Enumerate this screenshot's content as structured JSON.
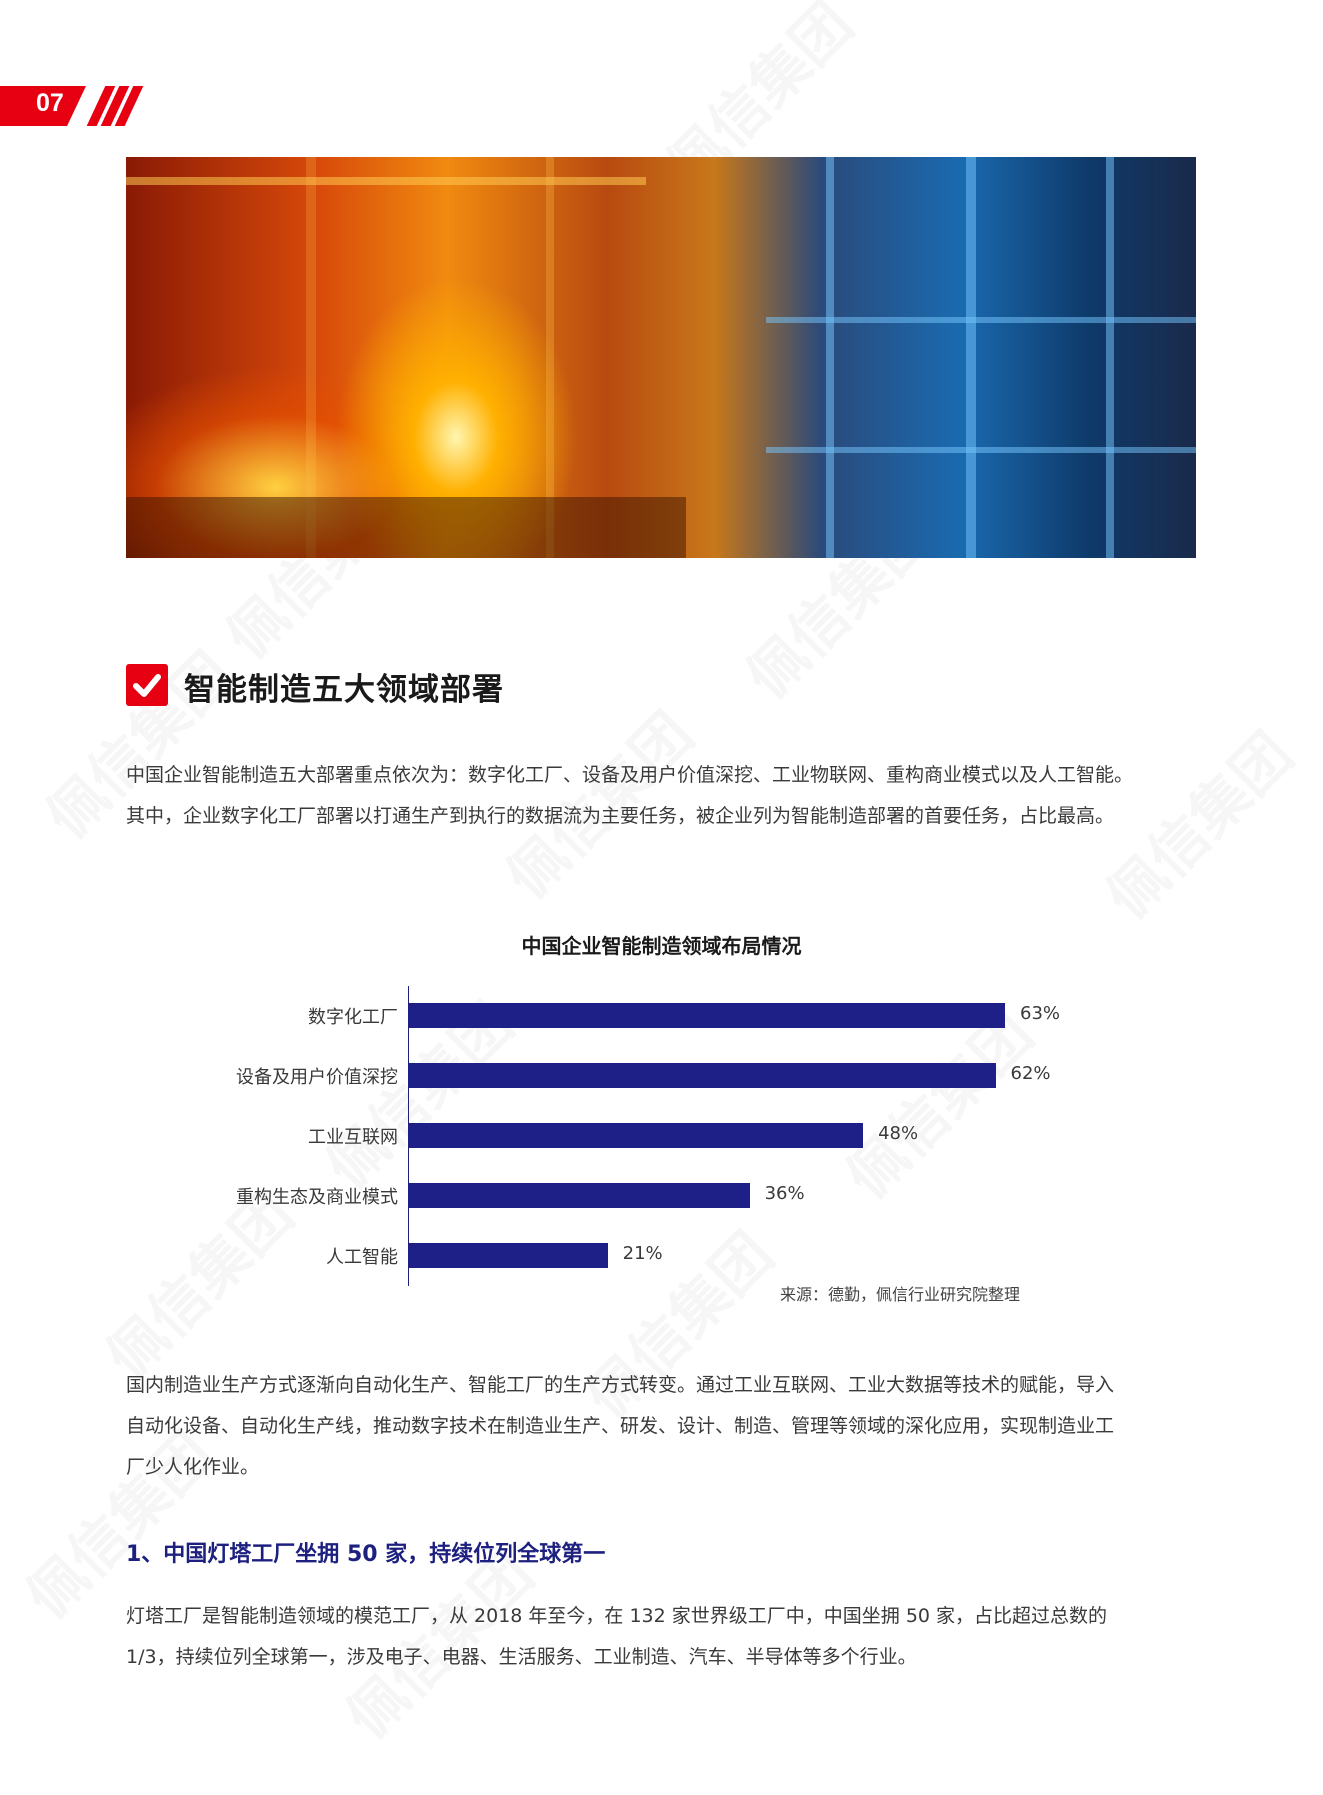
{
  "page": {
    "number": "07",
    "watermark": "佩信集团",
    "accent": "#e60012",
    "bar_color": "#1e2087"
  },
  "hero_image": {
    "alt": "steel-mill-industrial-photo"
  },
  "section": {
    "icon": "checkmark-icon",
    "title": "智能制造五大领域部署",
    "intro_lines": [
      "中国企业智能制造五大部署重点依次为：数字化工厂、设备及用户价值深挖、工业物联网、重构商业模式以及人工智能。",
      "其中，企业数字化工厂部署以打通生产到执行的数据流为主要任务，被企业列为智能制造部署的首要任务，占比最高。"
    ],
    "para2_lines": [
      "国内制造业生产方式逐渐向自动化生产、智能工厂的生产方式转变。通过工业互联网、工业大数据等技术的赋能，导入",
      "自动化设备、自动化生产线，推动数字技术在制造业生产、研发、设计、制造、管理等领域的深化应用，实现制造业工",
      "厂少人化作业。"
    ],
    "subheading": "1、中国灯塔工厂坐拥 50 家，持续位列全球第一",
    "para3_lines": [
      "灯塔工厂是智能制造领域的模范工厂，从 2018 年至今，在 132 家世界级工厂中，中国坐拥 50 家，占比超过总数的",
      "1/3，持续位列全球第一，涉及电子、电器、生活服务、工业制造、汽车、半导体等多个行业。"
    ]
  },
  "chart_data": {
    "type": "bar",
    "orientation": "horizontal",
    "title": "中国企业智能制造领域布局情况",
    "categories": [
      "数字化工厂",
      "设备及用户价值深挖",
      "工业互联网",
      "重构生态及商业模式",
      "人工智能"
    ],
    "values": [
      63,
      62,
      48,
      36,
      21
    ],
    "value_labels": [
      "63%",
      "62%",
      "48%",
      "36%",
      "21%"
    ],
    "unit": "%",
    "xlim": [
      0,
      100
    ],
    "grid": false,
    "legend": "none",
    "source": "来源：德勤，佩信行业研究院整理"
  }
}
